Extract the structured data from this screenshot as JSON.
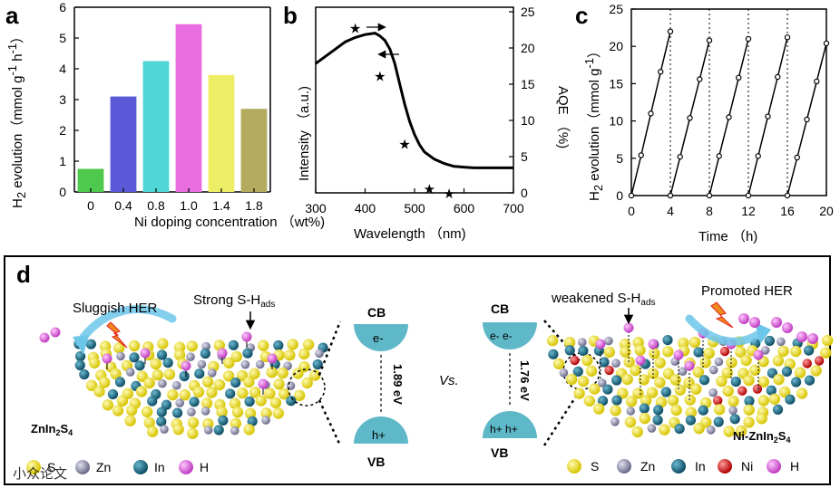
{
  "panels": {
    "a": "a",
    "b": "b",
    "c": "c",
    "d": "d"
  },
  "chart_data": [
    {
      "type": "bar",
      "panel": "a",
      "categories": [
        "0",
        "0.4",
        "0.8",
        "1.0",
        "1.4",
        "1.8"
      ],
      "values": [
        0.75,
        3.1,
        4.25,
        5.45,
        3.8,
        2.7
      ],
      "colors": [
        "#4ec94e",
        "#5a5ad8",
        "#4fd6d6",
        "#e86ee0",
        "#eeee66",
        "#b5ab5e"
      ],
      "ylim": [
        0,
        6
      ],
      "yticks": [
        "0",
        "1",
        "2",
        "3",
        "4",
        "5",
        "6"
      ],
      "xlabel": "Ni doping concentration （wt%)",
      "ylabel": "H2 evolution（mmol g-1 h-1）"
    },
    {
      "type": "line",
      "panel": "b",
      "xlabel": "Wavelength （nm)",
      "ylabel": "Intensity （a.u.)",
      "y2label": "AQE （%)",
      "xlim": [
        300,
        700
      ],
      "xticks": [
        "300",
        "400",
        "500",
        "600",
        "700"
      ],
      "y2lim": [
        0,
        25
      ],
      "y2ticks": [
        "0",
        "5",
        "10",
        "15",
        "20",
        "25"
      ],
      "series": [
        {
          "name": "absorption",
          "x": [
            300,
            320,
            340,
            360,
            380,
            400,
            420,
            430,
            440,
            450,
            460,
            470,
            480,
            490,
            500,
            510,
            520,
            540,
            560,
            580,
            600,
            620,
            650,
            700
          ],
          "y": [
            0.78,
            0.83,
            0.88,
            0.93,
            0.96,
            0.98,
            0.99,
            0.97,
            0.94,
            0.88,
            0.78,
            0.64,
            0.5,
            0.38,
            0.29,
            0.22,
            0.17,
            0.12,
            0.09,
            0.07,
            0.065,
            0.06,
            0.06,
            0.06
          ]
        },
        {
          "name": "AQE",
          "x": [
            380,
            430,
            480,
            530,
            570
          ],
          "y": [
            22.8,
            16.2,
            6.8,
            0.6,
            0.0
          ]
        }
      ]
    },
    {
      "type": "line",
      "panel": "c",
      "xlabel": "Time （h)",
      "ylabel": "H2 evolution（mmol g-1）",
      "xlim": [
        0,
        20
      ],
      "ylim": [
        0,
        25
      ],
      "xticks": [
        "0",
        "4",
        "8",
        "12",
        "16",
        "20"
      ],
      "yticks": [
        "0",
        "5",
        "10",
        "15",
        "20",
        "25"
      ],
      "cycles": [
        {
          "x": [
            0,
            1,
            2,
            3,
            4
          ],
          "y": [
            0,
            5.4,
            11.0,
            16.6,
            22.0
          ]
        },
        {
          "x": [
            4,
            5,
            6,
            7,
            8
          ],
          "y": [
            0,
            5.2,
            10.4,
            15.6,
            20.8
          ]
        },
        {
          "x": [
            8,
            9,
            10,
            11,
            12
          ],
          "y": [
            0,
            5.3,
            10.5,
            15.8,
            21.0
          ]
        },
        {
          "x": [
            12,
            13,
            14,
            15,
            16
          ],
          "y": [
            0,
            5.3,
            10.6,
            15.9,
            21.2
          ]
        },
        {
          "x": [
            16,
            17,
            18,
            19,
            20
          ],
          "y": [
            0,
            5.1,
            10.2,
            15.3,
            20.4
          ]
        }
      ]
    }
  ],
  "schematic": {
    "left": {
      "her": "Sluggish HER",
      "bond_pre": "Strong S-H",
      "bond_sub": "ads",
      "material_pre": "ZnIn",
      "material_s1": "2",
      "material_mid": "S",
      "material_s2": "4",
      "cb": "CB",
      "vb": "VB",
      "electrons": "e-",
      "holes": "h+",
      "gap": "1.89 eV",
      "legend": [
        "S",
        "Zn",
        "In",
        "H"
      ]
    },
    "vs": "Vs.",
    "right": {
      "her": "Promoted HER",
      "bond_pre": "weakened S-H",
      "bond_sub": "ads",
      "material_pre": "Ni-ZnIn",
      "material_s1": "2",
      "material_mid": "S",
      "material_s2": "4",
      "cb": "CB",
      "vb": "VB",
      "electrons": "e- e-",
      "holes": "h+ h+",
      "gap": "1.76 eV",
      "legend": [
        "S",
        "Zn",
        "In",
        "Ni",
        "H"
      ]
    },
    "watermark": "小众论文"
  },
  "colors": {
    "S": "#f2e01a",
    "Zn": "#8a8aa8",
    "In": "#1d6f8a",
    "Ni": "#e01414",
    "H": "#e060e0",
    "band": "#5fb8c8",
    "arrow": "#6cc6ea"
  }
}
